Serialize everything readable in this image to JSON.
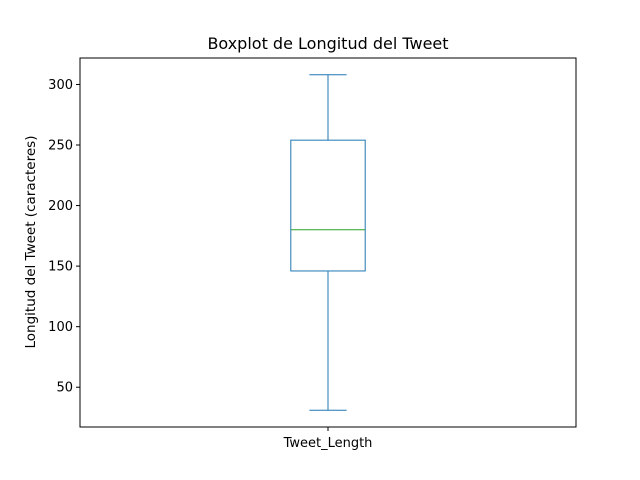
{
  "chart_data": {
    "type": "box",
    "title": "Boxplot de Longitud del Tweet",
    "xlabel": "",
    "ylabel": "Longitud del Tweet (caracteres)",
    "categories": [
      "Tweet_Length"
    ],
    "series": [
      {
        "stats": {
          "min": 31,
          "q1": 146,
          "median": 180,
          "q3": 254,
          "max": 308
        }
      }
    ],
    "ylim": [
      17.15,
      321.85
    ],
    "yticks": [
      50,
      100,
      150,
      200,
      250,
      300
    ],
    "grid": false,
    "colors": {
      "box": "#1f77b4",
      "median": "#2ca02c",
      "axes": "#000000"
    }
  }
}
